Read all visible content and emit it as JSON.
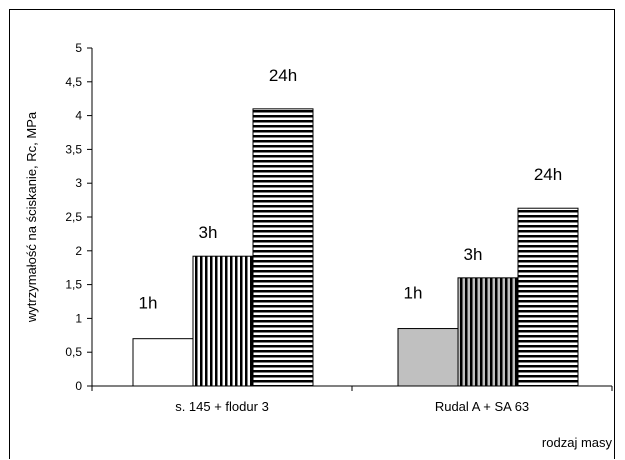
{
  "chart_data": {
    "type": "bar",
    "categories": [
      "s. 145 + flodur 3",
      "Rudal A + SA 63"
    ],
    "series": [
      {
        "name": "1h",
        "values": [
          0.7,
          0.85
        ]
      },
      {
        "name": "3h",
        "values": [
          1.92,
          1.6
        ]
      },
      {
        "name": "24h",
        "values": [
          4.1,
          2.63
        ]
      }
    ],
    "bar_labels": [
      [
        "1h",
        "3h",
        "24h"
      ],
      [
        "1h",
        "3h",
        "24h"
      ]
    ],
    "ylabel": "wytrzymałość na ściskanie, Rc, MPa",
    "xlabel": "rodzaj masy",
    "ylim": [
      0,
      5
    ],
    "yticks": [
      "0",
      "0,5",
      "1",
      "1,5",
      "2",
      "2,5",
      "3",
      "3,5",
      "4",
      "4,5",
      "5"
    ],
    "grid": false,
    "colors": {
      "fill_1h_group1": "#ffffff",
      "fill_1h_group2": "#c0c0c0",
      "stroke": "#000000"
    },
    "patterns": {
      "1h_group1": "solid",
      "1h_group2": "solid",
      "3h": "vertical-stripes",
      "24h": "horizontal-stripes"
    }
  }
}
